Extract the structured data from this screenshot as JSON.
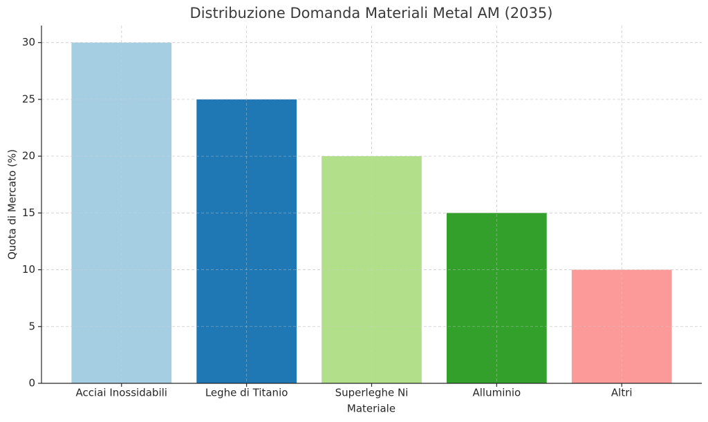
{
  "chart_data": {
    "type": "bar",
    "title": "Distribuzione Domanda Materiali Metal AM (2035)",
    "xlabel": "Materiale",
    "ylabel": "Quota di Mercato (%)",
    "categories": [
      "Acciai Inossidabili",
      "Leghe di Titanio",
      "Superleghe Ni",
      "Alluminio",
      "Altri"
    ],
    "values": [
      30,
      25,
      20,
      15,
      10
    ],
    "colors": [
      "#a6cee3",
      "#1f78b4",
      "#b2df8a",
      "#33a02c",
      "#fb9a99"
    ],
    "ylim": [
      0,
      31.5
    ],
    "yticks": [
      0,
      5,
      10,
      15,
      20,
      25,
      30
    ],
    "grid": true
  }
}
